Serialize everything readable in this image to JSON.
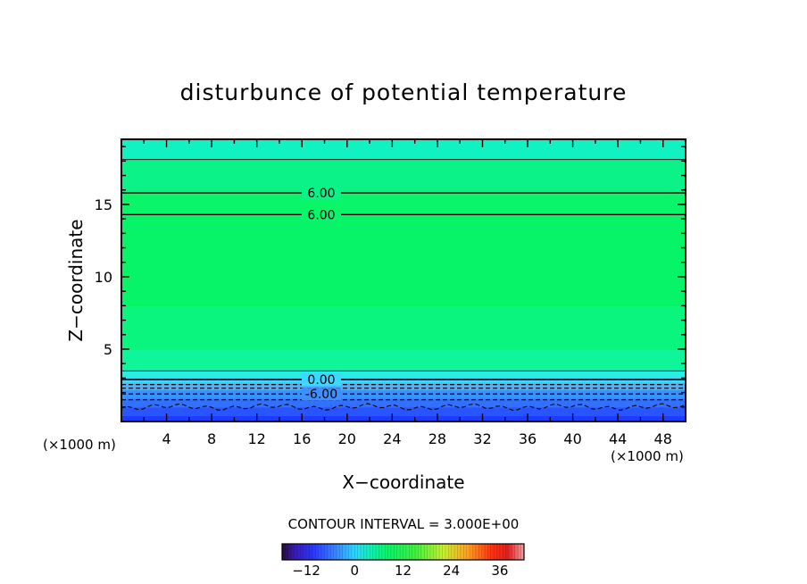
{
  "chart_data": {
    "type": "contour",
    "title": "disturbunce of potential temperature",
    "xlabel": "X−coordinate",
    "ylabel": "Z−coordinate",
    "x_unit": "(×1000 m)",
    "y_unit": "(×1000 m)",
    "xlim": [
      0,
      50
    ],
    "ylim": [
      0,
      19.5
    ],
    "x_ticks": [
      4,
      8,
      12,
      16,
      20,
      24,
      28,
      32,
      36,
      40,
      44,
      48
    ],
    "x_tick_labels": [
      "4",
      "8",
      "12",
      "16",
      "20",
      "24",
      "28",
      "32",
      "36",
      "40",
      "44",
      "48"
    ],
    "y_ticks": [
      5,
      10,
      15
    ],
    "y_tick_labels": [
      "5",
      "10",
      "15"
    ],
    "contour_interval_text": "CONTOUR INTERVAL = 3.000E+00",
    "contour_interval": 3.0,
    "field_bands": [
      {
        "z0": 0.0,
        "z1": 0.4,
        "value": -12,
        "color": "#1e3cff"
      },
      {
        "z0": 0.4,
        "z1": 1.0,
        "value": -10,
        "color": "#2855ff"
      },
      {
        "z0": 1.0,
        "z1": 1.6,
        "value": -8,
        "color": "#3270ff"
      },
      {
        "z0": 1.6,
        "z1": 2.2,
        "value": -6,
        "color": "#3c90ff"
      },
      {
        "z0": 2.2,
        "z1": 2.7,
        "value": -3,
        "color": "#46b4ff"
      },
      {
        "z0": 2.7,
        "z1": 3.1,
        "value": 0,
        "color": "#3cd8ff"
      },
      {
        "z0": 3.1,
        "z1": 3.6,
        "value": 1.5,
        "color": "#2aefe0"
      },
      {
        "z0": 3.6,
        "z1": 5.0,
        "value": 4,
        "color": "#0ff59a"
      },
      {
        "z0": 5.0,
        "z1": 8.0,
        "value": 5,
        "color": "#0af57e"
      },
      {
        "z0": 8.0,
        "z1": 14.3,
        "value": 6,
        "color": "#08f468"
      },
      {
        "z0": 14.3,
        "z1": 15.8,
        "value": 6.5,
        "color": "#0af56a"
      },
      {
        "z0": 15.8,
        "z1": 18.1,
        "value": 5,
        "color": "#0af288"
      },
      {
        "z0": 18.1,
        "z1": 19.5,
        "value": 3,
        "color": "#10f2c2"
      }
    ],
    "contours": [
      {
        "z": 1.0,
        "style": "dashed",
        "wavy": true,
        "label": ""
      },
      {
        "z": 1.5,
        "style": "dashed",
        "label": ""
      },
      {
        "z": 1.9,
        "style": "dashed",
        "label": "-6.00"
      },
      {
        "z": 2.3,
        "style": "dashed",
        "label": ""
      },
      {
        "z": 2.55,
        "style": "dashed",
        "label": ""
      },
      {
        "z": 2.9,
        "style": "solid",
        "label": "0.00"
      },
      {
        "z": 3.5,
        "style": "thin",
        "label": ""
      },
      {
        "z": 14.3,
        "style": "solid",
        "label": "6.00"
      },
      {
        "z": 15.8,
        "style": "solid",
        "label": "6.00"
      },
      {
        "z": 18.1,
        "style": "thin",
        "label": ""
      }
    ],
    "colorbar": {
      "min": -18,
      "max": 42,
      "tick_values": [
        -12,
        0,
        12,
        24,
        36
      ],
      "tick_labels": [
        "−12",
        "0",
        "12",
        "24",
        "36"
      ],
      "stops": [
        {
          "v": -18,
          "color": "#2a0a3a"
        },
        {
          "v": -15,
          "color": "#3a1ab0"
        },
        {
          "v": -10,
          "color": "#2a3aff"
        },
        {
          "v": -4,
          "color": "#3c90ff"
        },
        {
          "v": 0,
          "color": "#2ad8ff"
        },
        {
          "v": 4,
          "color": "#10f2b0"
        },
        {
          "v": 8,
          "color": "#08f468"
        },
        {
          "v": 15,
          "color": "#40f040"
        },
        {
          "v": 22,
          "color": "#c8f030"
        },
        {
          "v": 28,
          "color": "#ffa020"
        },
        {
          "v": 34,
          "color": "#ff3010"
        },
        {
          "v": 38,
          "color": "#e02020"
        },
        {
          "v": 42,
          "color": "#f0a0a0"
        }
      ]
    }
  }
}
